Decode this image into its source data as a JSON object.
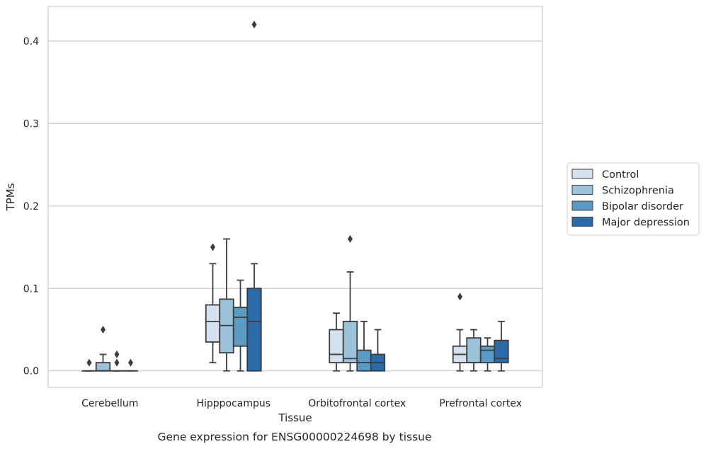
{
  "caption": "Gene expression for ENSG00000224698 by tissue",
  "chart_data": {
    "type": "box",
    "title": "",
    "xlabel": "Tissue",
    "ylabel": "TPMs",
    "ylim": [
      -0.02,
      0.442
    ],
    "yticks": [
      0.0,
      0.1,
      0.2,
      0.3,
      0.4
    ],
    "ytick_labels": [
      "0.0",
      "0.1",
      "0.2",
      "0.3",
      "0.4"
    ],
    "grid": "horizontal",
    "legend_placement": "right",
    "categories": [
      "Cerebellum",
      "Hipppocampus",
      "Orbitofrontal cortex",
      "Prefrontal cortex"
    ],
    "series": [
      {
        "name": "Control",
        "color": "#d4e2f0",
        "boxes": [
          {
            "q1": 0.0,
            "median": 0.0,
            "q3": 0.0,
            "whislo": 0.0,
            "whishi": 0.0,
            "fliers": [
              0.01
            ]
          },
          {
            "q1": 0.035,
            "median": 0.06,
            "q3": 0.08,
            "whislo": 0.01,
            "whishi": 0.13,
            "fliers": [
              0.15
            ]
          },
          {
            "q1": 0.01,
            "median": 0.02,
            "q3": 0.05,
            "whislo": 0.0,
            "whishi": 0.07,
            "fliers": []
          },
          {
            "q1": 0.01,
            "median": 0.02,
            "q3": 0.03,
            "whislo": 0.0,
            "whishi": 0.05,
            "fliers": [
              0.09
            ]
          }
        ]
      },
      {
        "name": "Schizophrenia",
        "color": "#9ac3da",
        "boxes": [
          {
            "q1": 0.0,
            "median": 0.0,
            "q3": 0.01,
            "whislo": 0.0,
            "whishi": 0.02,
            "fliers": [
              0.05
            ]
          },
          {
            "q1": 0.022,
            "median": 0.055,
            "q3": 0.087,
            "whislo": 0.0,
            "whishi": 0.16,
            "fliers": []
          },
          {
            "q1": 0.01,
            "median": 0.015,
            "q3": 0.06,
            "whislo": 0.0,
            "whishi": 0.12,
            "fliers": [
              0.16
            ]
          },
          {
            "q1": 0.01,
            "median": 0.01,
            "q3": 0.04,
            "whislo": 0.0,
            "whishi": 0.05,
            "fliers": []
          }
        ]
      },
      {
        "name": "Bipolar disorder",
        "color": "#5b9bc8",
        "boxes": [
          {
            "q1": 0.0,
            "median": 0.0,
            "q3": 0.0,
            "whislo": 0.0,
            "whishi": 0.0,
            "fliers": [
              0.01,
              0.02
            ]
          },
          {
            "q1": 0.03,
            "median": 0.065,
            "q3": 0.077,
            "whislo": 0.0,
            "whishi": 0.11,
            "fliers": []
          },
          {
            "q1": 0.0,
            "median": 0.01,
            "q3": 0.025,
            "whislo": 0.0,
            "whishi": 0.06,
            "fliers": []
          },
          {
            "q1": 0.01,
            "median": 0.025,
            "q3": 0.03,
            "whislo": 0.0,
            "whishi": 0.04,
            "fliers": []
          }
        ]
      },
      {
        "name": "Major depression",
        "color": "#2a6ca9",
        "boxes": [
          {
            "q1": 0.0,
            "median": 0.0,
            "q3": 0.0,
            "whislo": 0.0,
            "whishi": 0.0,
            "fliers": [
              0.01
            ]
          },
          {
            "q1": 0.0,
            "median": 0.06,
            "q3": 0.1,
            "whislo": 0.0,
            "whishi": 0.13,
            "fliers": [
              0.42
            ]
          },
          {
            "q1": 0.0,
            "median": 0.01,
            "q3": 0.02,
            "whislo": 0.0,
            "whishi": 0.05,
            "fliers": []
          },
          {
            "q1": 0.01,
            "median": 0.015,
            "q3": 0.037,
            "whislo": 0.0,
            "whishi": 0.06,
            "fliers": []
          }
        ]
      }
    ]
  }
}
